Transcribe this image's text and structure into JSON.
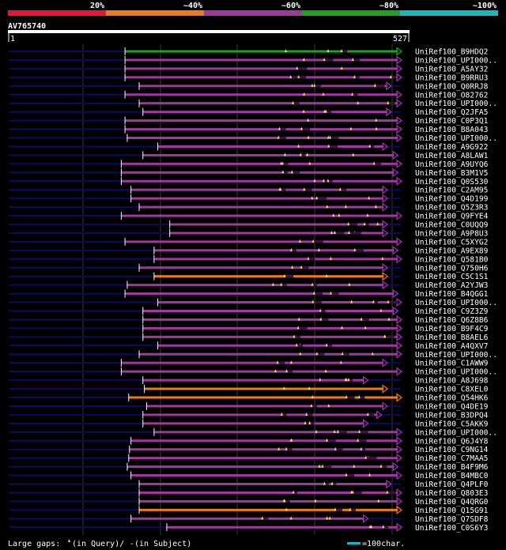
{
  "query_id": "AV765740",
  "query_length": 527,
  "ruler": {
    "start_label": "1",
    "end_label": "527"
  },
  "scale": {
    "labels": [
      "20%",
      "~40%",
      "~60%",
      "~80%",
      "~100%"
    ],
    "colors": [
      "#e8173a",
      "#ef7a1a",
      "#a038a0",
      "#1da31d",
      "#18b8c0"
    ]
  },
  "legend": {
    "gaps_text": "Large gaps: ",
    "query_gap_text": "(in Query)/",
    "subject_gap_marker": "-",
    "subject_gap_text": " (in Subject)",
    "scale_text": "=100char."
  },
  "colors": {
    "background": "#000000",
    "backbone": "#0b0b66",
    "gap_marker": "#f0e070",
    "grid": "#3a3a3a"
  },
  "chart_data": {
    "type": "alignment-overview",
    "query": "AV765740",
    "length": 527,
    "hits": [
      {
        "id": "UniRef100_B9HDQ2",
        "start": 157,
        "end": 527,
        "tier": 3
      },
      {
        "id": "UniRef100_UPI000..",
        "start": 157,
        "end": 527,
        "tier": 2
      },
      {
        "id": "UniRef100_A5AY32",
        "start": 157,
        "end": 527,
        "tier": 2
      },
      {
        "id": "UniRef100_B9RRU3",
        "start": 157,
        "end": 527,
        "tier": 2
      },
      {
        "id": "UniRef100_Q0RRJ8",
        "start": 176,
        "end": 513,
        "tier": 2
      },
      {
        "id": "UniRef100_O82762",
        "start": 157,
        "end": 527,
        "tier": 2
      },
      {
        "id": "UniRef100_UPI000..",
        "start": 176,
        "end": 527,
        "tier": 2
      },
      {
        "id": "UniRef100_Q2JFA5",
        "start": 181,
        "end": 513,
        "tier": 2
      },
      {
        "id": "UniRef100_C0P3Q1",
        "start": 157,
        "end": 527,
        "tier": 2
      },
      {
        "id": "UniRef100_B8A043",
        "start": 157,
        "end": 527,
        "tier": 2
      },
      {
        "id": "UniRef100_UPI000..",
        "start": 160,
        "end": 527,
        "tier": 2
      },
      {
        "id": "UniRef100_A9G922",
        "start": 201,
        "end": 508,
        "tier": 2
      },
      {
        "id": "UniRef100_A8LAW1",
        "start": 181,
        "end": 522,
        "tier": 2
      },
      {
        "id": "UniRef100_A9UYQ6",
        "start": 152,
        "end": 527,
        "tier": 2
      },
      {
        "id": "UniRef100_B3M1V5",
        "start": 152,
        "end": 522,
        "tier": 2
      },
      {
        "id": "UniRef100_Q0S530",
        "start": 152,
        "end": 527,
        "tier": 2
      },
      {
        "id": "UniRef100_C2AM95",
        "start": 165,
        "end": 508,
        "tier": 2
      },
      {
        "id": "UniRef100_Q4D199",
        "start": 165,
        "end": 508,
        "tier": 2
      },
      {
        "id": "UniRef100_Q5Z3R3",
        "start": 176,
        "end": 508,
        "tier": 2
      },
      {
        "id": "UniRef100_Q9FYE4",
        "start": 152,
        "end": 527,
        "tier": 2
      },
      {
        "id": "UniRef100_C0UQQ9",
        "start": 217,
        "end": 508,
        "tier": 2
      },
      {
        "id": "UniRef100_A9P8U3",
        "start": 217,
        "end": 508,
        "tier": 2
      },
      {
        "id": "UniRef100_C5XYG2",
        "start": 157,
        "end": 527,
        "tier": 2
      },
      {
        "id": "UniRef100_A9EX89",
        "start": 196,
        "end": 522,
        "tier": 2
      },
      {
        "id": "UniRef100_Q581B0",
        "start": 196,
        "end": 527,
        "tier": 2
      },
      {
        "id": "UniRef100_Q750H6",
        "start": 176,
        "end": 508,
        "tier": 2
      },
      {
        "id": "UniRef100_C5C1S1",
        "start": 196,
        "end": 508,
        "tier": 1
      },
      {
        "id": "UniRef100_A2YJW3",
        "start": 160,
        "end": 508,
        "tier": 2
      },
      {
        "id": "UniRef100_B4QGG1",
        "start": 157,
        "end": 522,
        "tier": 2
      },
      {
        "id": "UniRef100_UPI000..",
        "start": 201,
        "end": 527,
        "tier": 2
      },
      {
        "id": "UniRef100_C9Z3Z9",
        "start": 181,
        "end": 522,
        "tier": 2
      },
      {
        "id": "UniRef100_Q6Z8B6",
        "start": 181,
        "end": 527,
        "tier": 2
      },
      {
        "id": "UniRef100_B9F4C9",
        "start": 181,
        "end": 527,
        "tier": 2
      },
      {
        "id": "UniRef100_B8AEL6",
        "start": 181,
        "end": 527,
        "tier": 2
      },
      {
        "id": "UniRef100_A4QXV7",
        "start": 201,
        "end": 527,
        "tier": 2
      },
      {
        "id": "UniRef100_UPI000..",
        "start": 176,
        "end": 527,
        "tier": 2
      },
      {
        "id": "UniRef100_C1AWW9",
        "start": 152,
        "end": 508,
        "tier": 2
      },
      {
        "id": "UniRef100_UPI000..",
        "start": 152,
        "end": 527,
        "tier": 2
      },
      {
        "id": "UniRef100_A8J698",
        "start": 181,
        "end": 482,
        "tier": 2
      },
      {
        "id": "UniRef100_C8XEL0",
        "start": 183,
        "end": 508,
        "tier": 1
      },
      {
        "id": "UniRef100_Q54HK6",
        "start": 162,
        "end": 527,
        "tier": 1
      },
      {
        "id": "UniRef100_Q4DE19",
        "start": 186,
        "end": 508,
        "tier": 2
      },
      {
        "id": "UniRef100_B3DPQ4",
        "start": 181,
        "end": 500,
        "tier": 2
      },
      {
        "id": "UniRef100_C5AKK9",
        "start": 181,
        "end": 482,
        "tier": 2
      },
      {
        "id": "UniRef100_UPI000..",
        "start": 196,
        "end": 527,
        "tier": 2
      },
      {
        "id": "UniRef100_Q6J4Y8",
        "start": 165,
        "end": 527,
        "tier": 2
      },
      {
        "id": "UniRef100_C9NG14",
        "start": 163,
        "end": 527,
        "tier": 2
      },
      {
        "id": "UniRef100_C7MAA5",
        "start": 162,
        "end": 527,
        "tier": 2
      },
      {
        "id": "UniRef100_B4F9M6",
        "start": 160,
        "end": 522,
        "tier": 2
      },
      {
        "id": "UniRef100_B4MBC0",
        "start": 165,
        "end": 527,
        "tier": 2
      },
      {
        "id": "UniRef100_Q4PLF0",
        "start": 176,
        "end": 513,
        "tier": 2
      },
      {
        "id": "UniRef100_Q803E3",
        "start": 176,
        "end": 527,
        "tier": 2
      },
      {
        "id": "UniRef100_Q4QRG0",
        "start": 176,
        "end": 527,
        "tier": 2
      },
      {
        "id": "UniRef100_Q15G91",
        "start": 176,
        "end": 527,
        "tier": 1
      },
      {
        "id": "UniRef100_Q7SDF8",
        "start": 165,
        "end": 482,
        "tier": 2
      },
      {
        "id": "UniRef100_C0S6Y3",
        "start": 213,
        "end": 527,
        "tier": 2
      }
    ]
  }
}
